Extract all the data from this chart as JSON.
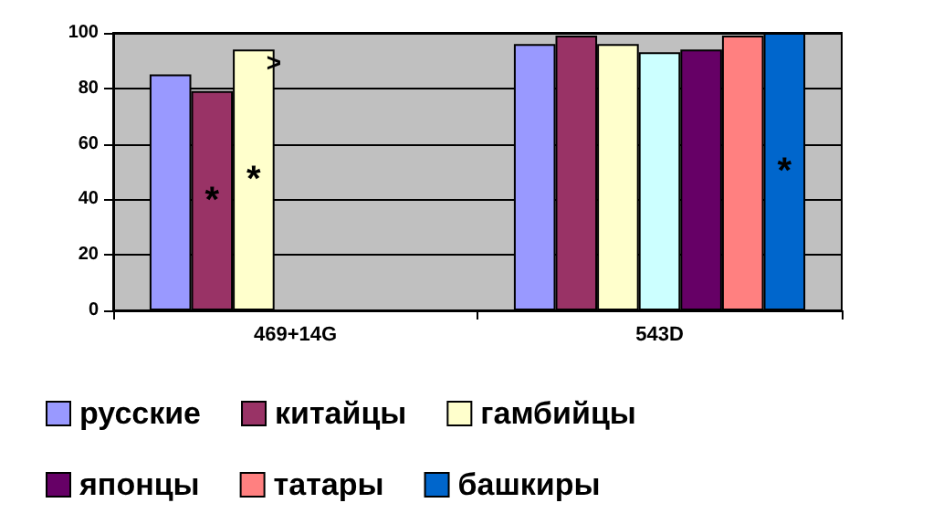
{
  "chart_data": {
    "type": "bar",
    "categories": [
      "469+14G",
      "543D"
    ],
    "series": [
      {
        "name": "русские",
        "color": "#9999ff",
        "values": [
          85,
          96
        ]
      },
      {
        "name": "китайцы",
        "color": "#993366",
        "values": [
          79,
          99
        ],
        "value_labels": [
          "*",
          null
        ]
      },
      {
        "name": "гамбийцы",
        "color": "#ffffcc",
        "values": [
          94,
          96
        ],
        "value_labels": [
          "*",
          null
        ]
      },
      {
        "color": "#ccffff",
        "values": [
          null,
          93
        ]
      },
      {
        "name": "японцы",
        "color": "#660066",
        "values": [
          null,
          94
        ]
      },
      {
        "name": "татары",
        "color": "#ff8080",
        "values": [
          null,
          99
        ]
      },
      {
        "name": "башкиры",
        "color": "#0066cc",
        "values": [
          null,
          100
        ],
        "value_labels": [
          null,
          "*"
        ]
      }
    ],
    "annotations": [
      ">"
    ],
    "ylim": [
      0,
      100
    ],
    "yticks": [
      0,
      20,
      40,
      60,
      80,
      100
    ],
    "grid": "y",
    "legend": "bottom"
  }
}
